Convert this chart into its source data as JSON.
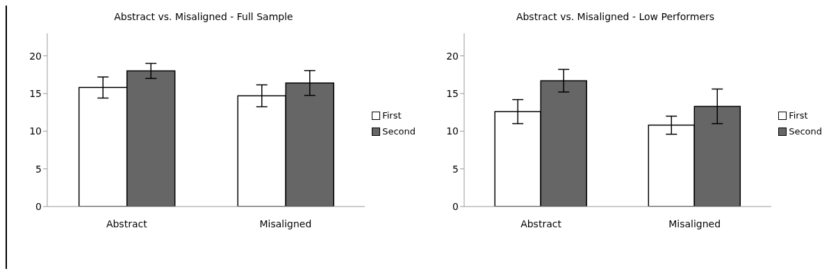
{
  "chart_data": [
    {
      "type": "bar",
      "title": "Abstract vs. Misaligned - Full Sample",
      "categories": [
        "Abstract",
        "Misaligned"
      ],
      "series": [
        {
          "name": "First",
          "color": "#ffffff",
          "values": [
            15.8,
            14.7
          ],
          "errors": [
            1.4,
            1.45
          ]
        },
        {
          "name": "Second",
          "color": "#666666",
          "values": [
            18.0,
            16.4
          ],
          "errors": [
            1.0,
            1.65
          ]
        }
      ],
      "ylim": [
        0,
        23
      ],
      "yticks": [
        0,
        5,
        10,
        15,
        20
      ],
      "grid": false,
      "legend": "right"
    },
    {
      "type": "bar",
      "title": "Abstract vs. Misaligned - Low Performers",
      "categories": [
        "Abstract",
        "Misaligned"
      ],
      "series": [
        {
          "name": "First",
          "color": "#ffffff",
          "values": [
            12.6,
            10.8
          ],
          "errors": [
            1.6,
            1.2
          ]
        },
        {
          "name": "Second",
          "color": "#666666",
          "values": [
            16.7,
            13.3
          ],
          "errors": [
            1.5,
            2.3
          ]
        }
      ],
      "ylim": [
        0,
        23
      ],
      "yticks": [
        0,
        5,
        10,
        15,
        20
      ],
      "grid": false,
      "legend": "right"
    }
  ]
}
